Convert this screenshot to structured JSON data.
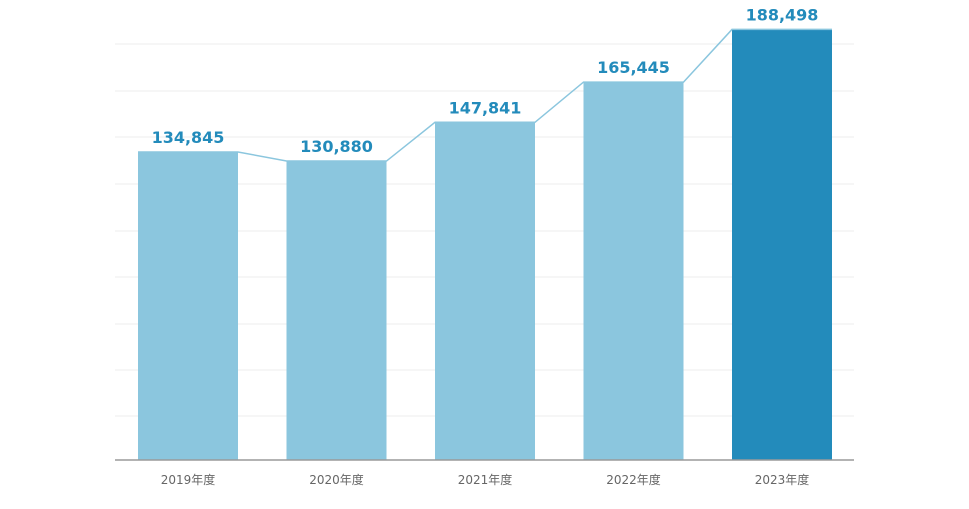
{
  "chart_data": {
    "type": "bar",
    "title": "",
    "xlabel": "",
    "ylabel": "",
    "categories": [
      "2019年度",
      "2020年度",
      "2021年度",
      "2022年度",
      "2023年度"
    ],
    "values": [
      134845,
      130880,
      147841,
      165445,
      188498
    ],
    "value_labels": [
      "134,845",
      "130,880",
      "147,841",
      "165,445",
      "188,498"
    ],
    "ylim": [
      0,
      190000
    ],
    "grid": true,
    "legend": "none",
    "connector_line": true,
    "highlight_index": 4,
    "colors": {
      "bar": "#8bc6de",
      "bar_highlight": "#238bbb",
      "connector": "#8bc6de",
      "value_label": "#238bbb",
      "tick_label": "#666666",
      "grid": "#ececec",
      "axis": "#9a9a9a"
    }
  }
}
